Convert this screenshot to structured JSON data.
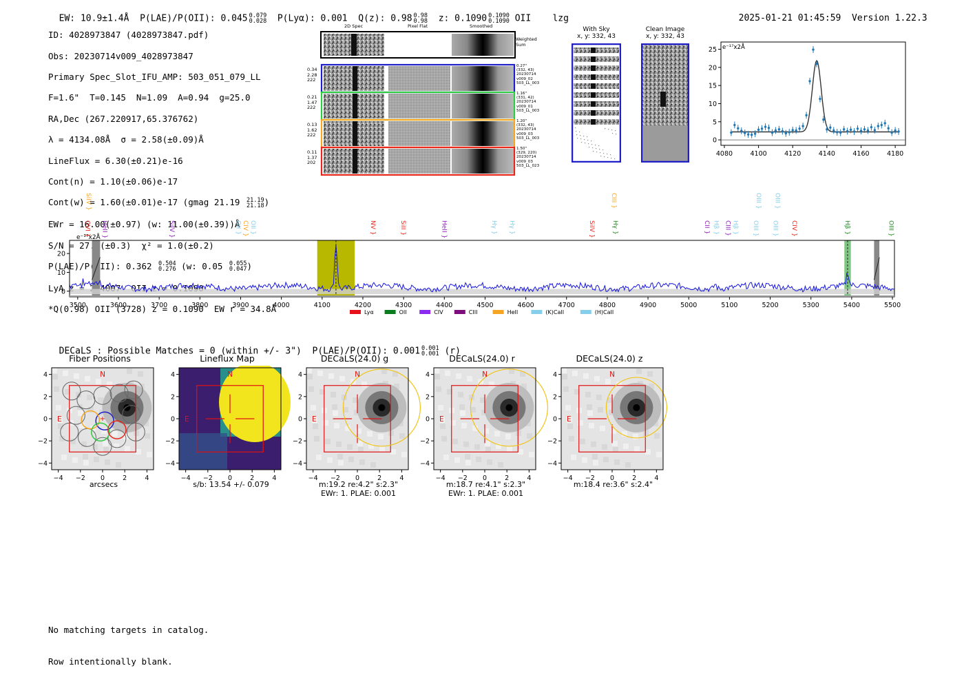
{
  "header": {
    "ew": "EW: 10.9±1.4Å",
    "plae_label": "P(LAE)/P(OII): 0.045",
    "plae_hi": "0.079",
    "plae_lo": "0.028",
    "plya": "P(Lyα): 0.001",
    "qz_label": "Q(z): 0.98",
    "qz_hi": "0.98",
    "qz_lo": "0.98",
    "z_label": "z: 0.1090",
    "z_hi": "0.1090",
    "z_lo": "0.1090",
    "z_line": "OII",
    "flags": "lzg",
    "datetime": "2025-01-21 01:45:59",
    "version": "Version 1.22.3"
  },
  "info": {
    "id": "ID: 4028973847 (4028973847.pdf)",
    "obs": "Obs: 20230714v009_4028973847",
    "primary": "Primary Spec_Slot_IFU_AMP: 503_051_079_LL",
    "params": "F=1.6\"  T=0.145  N=1.09  A=0.94  g=25.0",
    "radec": "RA,Dec (267.220917,65.376762)",
    "lambda": "λ = 4134.08Å  σ = 2.58(±0.09)Å",
    "lineflux": "LineFlux = 6.30(±0.21)e-16",
    "contn": "Cont(n) = 1.10(±0.06)e-17",
    "contw": "Cont(w) = 1.60(±0.01)e-17 (gmag 21.19",
    "gmag_hi": "21.19",
    "gmag_lo": "21.18",
    "contw_end": ")",
    "ewr": "EWr = 16.00(±0.97) (w: 11.00(±0.39))Å",
    "sn": "S/N = 27.0(±0.3)  χ² = 1.0(±0.2)",
    "plae": "P(LAE)/P(OII): 0.362",
    "plae_hi": "0.504",
    "plae_lo": "0.276",
    "plae_w": "(w: 0.05",
    "plae_w_hi": "0.055",
    "plae_w_lo": "0.047",
    "plae_w_end": ")",
    "lya": "LyA z = 2.4007  OII z = 0.1090",
    "q": "*Q(0.98) OII (3728) z = 0.1090  EW r = 34.8Å"
  },
  "cutouts": {
    "col_2d": "2D Spec",
    "col_flat": "Pixel Flat",
    "col_smooth": "Smoothed",
    "weighted": "Weighted\nSum",
    "rows": [
      {
        "left": [
          "0.34",
          "2.28",
          "222"
        ],
        "right": [
          "0.27\"",
          "(332, 43)",
          "20230714",
          "v009_02",
          "503_LL_003"
        ],
        "color": "#1f1fc8"
      },
      {
        "left": [
          "0.21",
          "1.47",
          "222"
        ],
        "right": [
          "1.16\"",
          "(331, 42)",
          "20230714",
          "v009_01",
          "503_LL_003"
        ],
        "color": "#2ecc40"
      },
      {
        "left": [
          "0.13",
          "1.62",
          "222"
        ],
        "right": [
          "1.20\"",
          "(332, 43)",
          "20230714",
          "v009_03",
          "503_LL_003"
        ],
        "color": "#f5a623"
      },
      {
        "left": [
          "0.11",
          "1.37",
          "202"
        ],
        "right": [
          "1.50\"",
          "(329, 220)",
          "20230714",
          "v009_03",
          "503_LL_023"
        ],
        "color": "#e8261b"
      }
    ]
  },
  "sky": {
    "with_sky": "With Sky",
    "clean": "Clean Image",
    "coords": "x, y: 332, 43"
  },
  "zoom_plot": {
    "unit": "e⁻¹⁷x2Å",
    "x": [
      4084,
      4086,
      4088,
      4090,
      4092,
      4094,
      4096,
      4098,
      4100,
      4102,
      4104,
      4106,
      4108,
      4110,
      4112,
      4114,
      4116,
      4118,
      4120,
      4122,
      4124,
      4126,
      4128,
      4130,
      4132,
      4134,
      4136,
      4138,
      4140,
      4142,
      4144,
      4146,
      4148,
      4150,
      4152,
      4154,
      4156,
      4158,
      4160,
      4162,
      4164,
      4166,
      4168,
      4170,
      4172,
      4174,
      4176,
      4178,
      4180,
      4182
    ],
    "y": [
      2.0,
      4.1,
      3.2,
      2.5,
      1.9,
      1.5,
      1.4,
      1.7,
      2.8,
      3.1,
      3.6,
      3.3,
      2.0,
      2.6,
      2.9,
      2.4,
      1.8,
      2.1,
      2.7,
      2.6,
      3.1,
      3.8,
      6.8,
      16.2,
      24.9,
      21.0,
      11.3,
      5.6,
      2.9,
      3.4,
      2.6,
      2.1,
      2.0,
      2.9,
      2.4,
      2.8,
      2.3,
      3.1,
      2.5,
      2.9,
      2.6,
      3.5,
      2.7,
      3.8,
      4.1,
      4.6,
      3.2,
      2.0,
      2.6,
      2.3
    ],
    "xticks": [
      4080,
      4100,
      4120,
      4140,
      4160,
      4180
    ],
    "yticks": [
      0,
      5,
      10,
      15,
      20,
      25
    ],
    "xlim": [
      4078,
      4186
    ],
    "ylim": [
      -1.5,
      27
    ]
  },
  "spectrum": {
    "unit": "e⁻¹⁷x2Å",
    "xticks": [
      3500,
      3600,
      3700,
      3800,
      3900,
      4000,
      4100,
      4200,
      4300,
      4400,
      4500,
      4600,
      4700,
      4800,
      4900,
      5000,
      5100,
      5200,
      5300,
      5400,
      5500
    ],
    "yticks": [
      0,
      10,
      20
    ],
    "xlim": [
      3480,
      5505
    ],
    "ylim": [
      -3,
      27
    ],
    "highlight": [
      4088,
      4180
    ],
    "peak": 4134,
    "masked": [
      [
        3535,
        3555
      ],
      [
        5455,
        5468
      ]
    ],
    "hb_band": [
      5382,
      5398
    ],
    "lines_top": [
      {
        "name": "SiIV",
        "x": 3522,
        "color": "#f5a623"
      },
      {
        "name": "CIII",
        "x": 4812,
        "color": "#f5a623"
      },
      {
        "name": "OIII",
        "x": 5167,
        "color": "#87ceeb"
      },
      {
        "name": "OIII",
        "x": 5213,
        "color": "#87ceeb"
      }
    ],
    "lines_bottom": [
      {
        "name": "OVI",
        "x": 3520,
        "color": "#e8261b"
      },
      {
        "name": "HeII",
        "x": 3562,
        "color": "#8b1fb5"
      },
      {
        "name": "SiIV",
        "x": 3727,
        "color": "#8b1fb5"
      },
      {
        "name": "OII",
        "x": 3890,
        "color": "#87ceeb"
      },
      {
        "name": "CIV",
        "x": 3908,
        "color": "#f5a623"
      },
      {
        "name": "OII",
        "x": 3926,
        "color": "#87ceeb"
      },
      {
        "name": "NV",
        "x": 4220,
        "color": "#e8261b"
      },
      {
        "name": "SiII",
        "x": 4295,
        "color": "#e8261b"
      },
      {
        "name": "HeII",
        "x": 4395,
        "color": "#8b1fb5"
      },
      {
        "name": "Hγ",
        "x": 4518,
        "color": "#87ceeb"
      },
      {
        "name": "Hγ",
        "x": 4562,
        "color": "#87ceeb"
      },
      {
        "name": "SiIV",
        "x": 4758,
        "color": "#e8261b"
      },
      {
        "name": "Hγ",
        "x": 4815,
        "color": "#228b22"
      },
      {
        "name": "CII",
        "x": 5040,
        "color": "#8b1fb5"
      },
      {
        "name": "Hβ",
        "x": 5063,
        "color": "#87ceeb"
      },
      {
        "name": "CIII",
        "x": 5092,
        "color": "#8b1fb5"
      },
      {
        "name": "Hβ",
        "x": 5110,
        "color": "#87ceeb"
      },
      {
        "name": "OIII",
        "x": 5160,
        "color": "#87ceeb"
      },
      {
        "name": "OIII",
        "x": 5208,
        "color": "#87ceeb"
      },
      {
        "name": "CIV",
        "x": 5255,
        "color": "#e8261b"
      },
      {
        "name": "Hβ",
        "x": 5385,
        "color": "#228b22"
      },
      {
        "name": "OIII",
        "x": 5492,
        "color": "#228b22"
      }
    ],
    "legend": [
      {
        "name": "Lyα",
        "color": "#e8101b"
      },
      {
        "name": "OII",
        "color": "#0a7d1e"
      },
      {
        "name": "CIV",
        "color": "#8c2cf0"
      },
      {
        "name": "CIII",
        "color": "#7d0f7d"
      },
      {
        "name": "HeII",
        "color": "#f5a623"
      },
      {
        "name": "(K)CaII",
        "color": "#87ceeb"
      },
      {
        "name": "(H)CaII",
        "color": "#87ceeb"
      }
    ]
  },
  "decals": {
    "title": "DECaLS : Possible Matches = 0 (within +/- 3\")  P(LAE)/P(OII): 0.001",
    "hi": "0.001",
    "lo": "0.001",
    "band": "(r)",
    "panels": [
      {
        "title": "Fiber Positions",
        "xlabel": "arcsecs",
        "sub1": "",
        "sub2": ""
      },
      {
        "title": "Lineflux Map",
        "xlabel": "s/b: 13.54 +/- 0.079",
        "sub1": "",
        "sub2": ""
      },
      {
        "title": "DECaLS(24.0) g",
        "xlabel": "m:19.2  re:4.2\"  s:2.3\"",
        "sub1": "EWr: 1. PLAE: 0.001",
        "sub2": ""
      },
      {
        "title": "DECaLS(24.0) r",
        "xlabel": "m:18.7  re:4.1\"  s:2.3\"",
        "sub1": "EWr: 1. PLAE: 0.001",
        "sub2": ""
      },
      {
        "title": "DECaLS(24.0) z",
        "xlabel": "m:18.4  re:3.6\"  s:2.4\"",
        "sub1": "",
        "sub2": ""
      }
    ],
    "ticks": [
      "−4",
      "−2",
      "0",
      "2",
      "4"
    ],
    "yticks": [
      "4",
      "2",
      "0",
      "−2",
      "−4"
    ],
    "north": "N",
    "east": "E"
  },
  "footer": {
    "line1": "No matching targets in catalog.",
    "line2": "Row intentionally blank."
  }
}
